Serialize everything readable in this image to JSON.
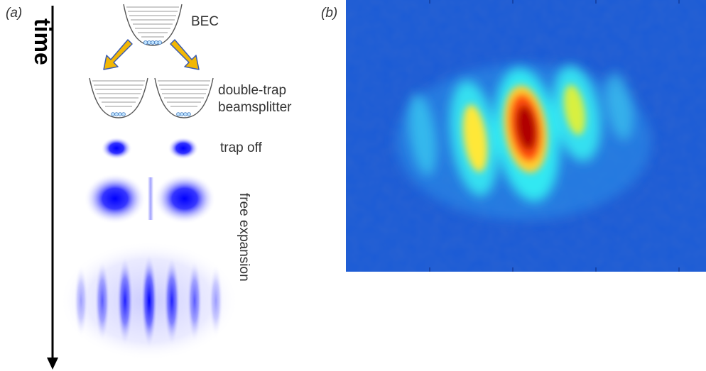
{
  "panels": {
    "a_label": "(a)",
    "b_label": "(b)"
  },
  "timeline": {
    "label": "time"
  },
  "stages": {
    "bec": "BEC",
    "double_trap_line1": "double-trap",
    "double_trap_line2": "beamsplitter",
    "trap_off": "trap off",
    "free_expansion": "free expansion"
  },
  "colors": {
    "arrow_fill": "#f2b705",
    "arrow_stroke": "#3b5bb0",
    "atom_blue": "#0000ff",
    "trap_stroke": "#888888"
  }
}
